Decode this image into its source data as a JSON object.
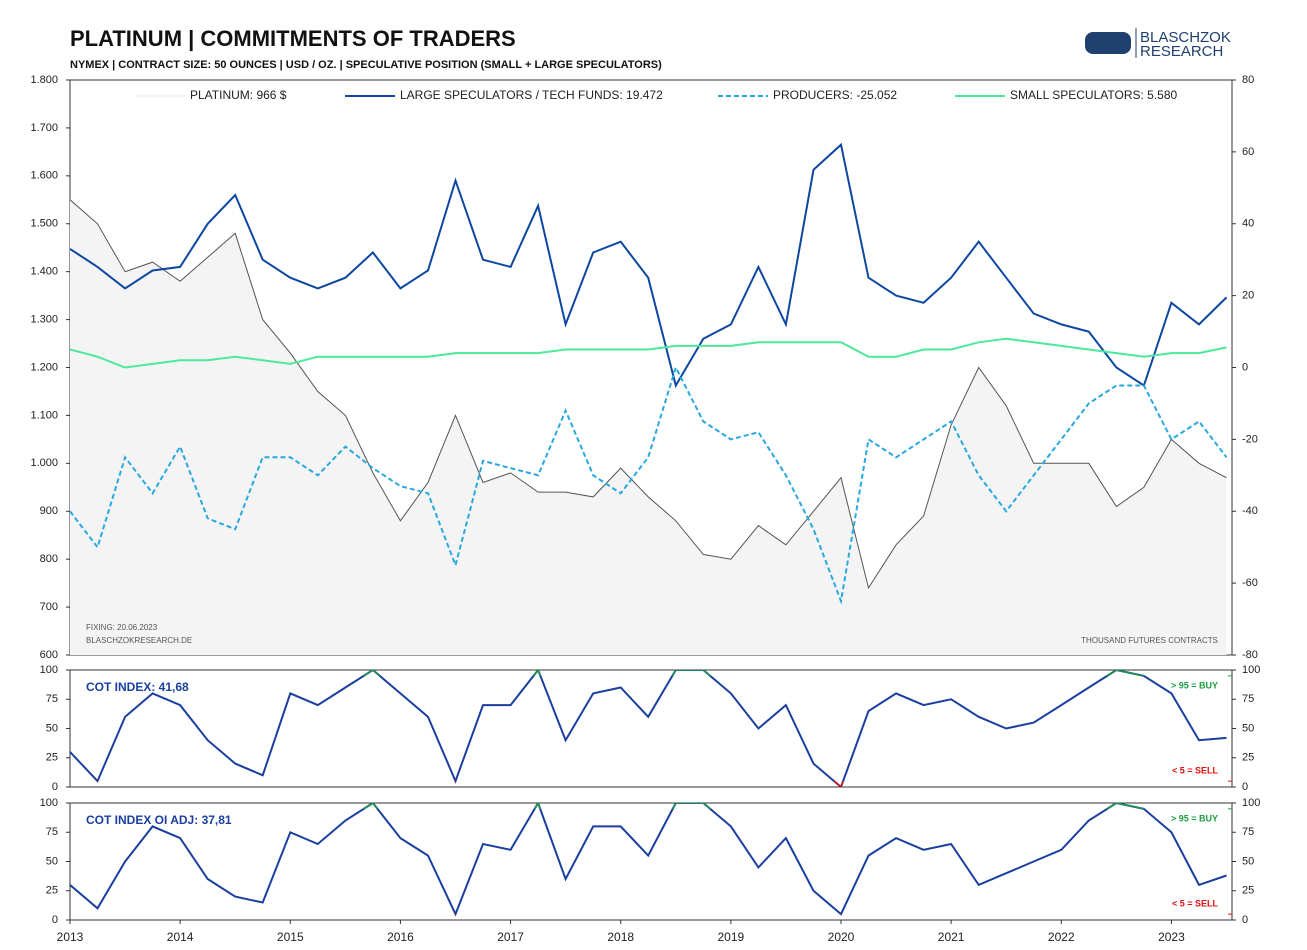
{
  "header": {
    "title": "PLATINUM | COMMITMENTS OF TRADERS",
    "subtitle": "NYMEX  |  CONTRACT SIZE: 50 OUNCES  |  USD / OZ.  |  SPECULATIVE POSITION (SMALL + LARGE SPECULATORS)",
    "logo": [
      "BLASCHZOK",
      "RESEARCH"
    ]
  },
  "chart_data": [
    {
      "type": "line",
      "annotations": [
        "FIXING: 20.06.2023",
        "BLASCHZOKRESEARCH.DE",
        "THOUSAND  FUTURES  CONTRACTS"
      ],
      "x": [
        2013,
        2013.25,
        2013.5,
        2013.75,
        2014,
        2014.25,
        2014.5,
        2014.75,
        2015,
        2015.25,
        2015.5,
        2015.75,
        2016,
        2016.25,
        2016.5,
        2016.75,
        2017,
        2017.25,
        2017.5,
        2017.75,
        2018,
        2018.25,
        2018.5,
        2018.75,
        2019,
        2019.25,
        2019.5,
        2019.75,
        2020,
        2020.25,
        2020.5,
        2020.75,
        2021,
        2021.25,
        2021.5,
        2021.75,
        2022,
        2022.25,
        2022.5,
        2022.75,
        2023,
        2023.25,
        2023.5
      ],
      "xlim": [
        2013,
        2023.55
      ],
      "ylim": [
        600,
        1800
      ],
      "yticks": [
        600,
        700,
        800,
        900,
        {
          "value": 1000,
          "label": "1.000"
        },
        {
          "value": 1100,
          "label": "1.100"
        },
        {
          "value": 1200,
          "label": "1.200"
        },
        {
          "value": 1300,
          "label": "1.300"
        },
        {
          "value": 1400,
          "label": "1.400"
        },
        {
          "value": 1500,
          "label": "1.500"
        },
        {
          "value": 1600,
          "label": "1.600"
        },
        {
          "value": 1700,
          "label": "1.700"
        },
        {
          "value": 1800,
          "label": "1.800"
        }
      ],
      "y2lim": [
        -80,
        80
      ],
      "y2ticks": [
        -80,
        -60,
        -40,
        -20,
        0,
        20,
        40,
        60,
        80
      ],
      "series": [
        {
          "name": "PLATINUM: 966 $",
          "color": "#555555",
          "fill": "#f4f4f4",
          "axis": "y",
          "values": [
            1550,
            1500,
            1400,
            1420,
            1380,
            1430,
            1480,
            1300,
            1230,
            1150,
            1100,
            980,
            880,
            960,
            1100,
            960,
            980,
            940,
            940,
            930,
            990,
            930,
            880,
            810,
            800,
            870,
            830,
            900,
            970,
            740,
            830,
            890,
            1080,
            1200,
            1120,
            1000,
            1000,
            1000,
            910,
            950,
            1050,
            1000,
            970
          ]
        },
        {
          "name": "LARGE SPECULATORS / TECH FUNDS: 19.472",
          "color": "#0d47a1",
          "axis": "y2",
          "values": [
            33,
            28,
            22,
            27,
            28,
            40,
            48,
            30,
            25,
            22,
            25,
            32,
            22,
            27,
            52,
            30,
            28,
            45,
            12,
            32,
            35,
            25,
            -5,
            8,
            12,
            28,
            12,
            55,
            62,
            25,
            20,
            18,
            25,
            35,
            25,
            15,
            12,
            10,
            0,
            -5,
            18,
            12,
            19.5
          ]
        },
        {
          "name": "PRODUCERS: -25.052",
          "color": "#29a8e0",
          "dashed": true,
          "axis": "y2",
          "values": [
            -40,
            -50,
            -25,
            -35,
            -22,
            -42,
            -45,
            -25,
            -25,
            -30,
            -22,
            -28,
            -33,
            -35,
            -55,
            -26,
            -28,
            -30,
            -12,
            -30,
            -35,
            -25,
            0,
            -15,
            -20,
            -18,
            -30,
            -45,
            -65,
            -20,
            -25,
            -20,
            -15,
            -30,
            -40,
            -30,
            -20,
            -10,
            -5,
            -5,
            -20,
            -15,
            -25
          ]
        },
        {
          "name": "SMALL SPECULATORS: 5.580",
          "color": "#4de89a",
          "axis": "y2",
          "values": [
            5,
            3,
            0,
            1,
            2,
            2,
            3,
            2,
            1,
            3,
            3,
            3,
            3,
            3,
            4,
            4,
            4,
            4,
            5,
            5,
            5,
            5,
            6,
            6,
            6,
            7,
            7,
            7,
            7,
            3,
            3,
            5,
            5,
            7,
            8,
            7,
            6,
            5,
            4,
            3,
            4,
            4,
            5.6
          ]
        }
      ]
    },
    {
      "type": "line",
      "title": "COT INDEX: 41,68",
      "x": [
        2013,
        2013.25,
        2013.5,
        2013.75,
        2014,
        2014.25,
        2014.5,
        2014.75,
        2015,
        2015.25,
        2015.5,
        2015.75,
        2016,
        2016.25,
        2016.5,
        2016.75,
        2017,
        2017.25,
        2017.5,
        2017.75,
        2018,
        2018.25,
        2018.5,
        2018.75,
        2019,
        2019.25,
        2019.5,
        2019.75,
        2020,
        2020.25,
        2020.5,
        2020.75,
        2021,
        2021.25,
        2021.5,
        2021.75,
        2022,
        2022.25,
        2022.5,
        2022.75,
        2023,
        2023.25,
        2023.5
      ],
      "xlim": [
        2013,
        2023.55
      ],
      "ylim": [
        0,
        100
      ],
      "yticks": [
        0,
        25,
        50,
        75,
        100
      ],
      "y2lim": [
        0,
        100
      ],
      "y2ticks": [
        0,
        25,
        50,
        75,
        100
      ],
      "buy": {
        "value": 95,
        "label": "> 95 = BUY",
        "color": "#1a9e3f"
      },
      "sell": {
        "value": 5,
        "label": "< 5 = SELL",
        "color": "#e01010"
      },
      "series": [
        {
          "color": "#1a3fa0",
          "values": [
            30,
            5,
            60,
            80,
            70,
            40,
            20,
            10,
            80,
            70,
            85,
            100,
            80,
            60,
            5,
            70,
            70,
            100,
            40,
            80,
            85,
            60,
            100,
            100,
            80,
            50,
            70,
            20,
            0,
            65,
            80,
            70,
            75,
            60,
            50,
            55,
            70,
            85,
            100,
            95,
            80,
            40,
            42
          ]
        }
      ]
    },
    {
      "type": "line",
      "title": "COT INDEX OI ADJ: 37,81",
      "x": [
        2013,
        2013.25,
        2013.5,
        2013.75,
        2014,
        2014.25,
        2014.5,
        2014.75,
        2015,
        2015.25,
        2015.5,
        2015.75,
        2016,
        2016.25,
        2016.5,
        2016.75,
        2017,
        2017.25,
        2017.5,
        2017.75,
        2018,
        2018.25,
        2018.5,
        2018.75,
        2019,
        2019.25,
        2019.5,
        2019.75,
        2020,
        2020.25,
        2020.5,
        2020.75,
        2021,
        2021.25,
        2021.5,
        2021.75,
        2022,
        2022.25,
        2022.5,
        2022.75,
        2023,
        2023.25,
        2023.5
      ],
      "xlim": [
        2013,
        2023.55
      ],
      "xticks": [
        2013,
        2014,
        2015,
        2016,
        2017,
        2018,
        2019,
        2020,
        2021,
        2022,
        2023
      ],
      "ylim": [
        0,
        100
      ],
      "yticks": [
        0,
        25,
        50,
        75,
        100
      ],
      "y2lim": [
        0,
        100
      ],
      "y2ticks": [
        0,
        25,
        50,
        75,
        100
      ],
      "buy": {
        "value": 95,
        "label": "> 95 = BUY",
        "color": "#1a9e3f"
      },
      "sell": {
        "value": 5,
        "label": "< 5 = SELL",
        "color": "#e01010"
      },
      "series": [
        {
          "color": "#1a3fa0",
          "values": [
            30,
            10,
            50,
            80,
            70,
            35,
            20,
            15,
            75,
            65,
            85,
            100,
            70,
            55,
            5,
            65,
            60,
            100,
            35,
            80,
            80,
            55,
            100,
            100,
            80,
            45,
            70,
            25,
            5,
            55,
            70,
            60,
            65,
            30,
            40,
            50,
            60,
            85,
            100,
            95,
            75,
            30,
            38
          ]
        }
      ]
    }
  ]
}
